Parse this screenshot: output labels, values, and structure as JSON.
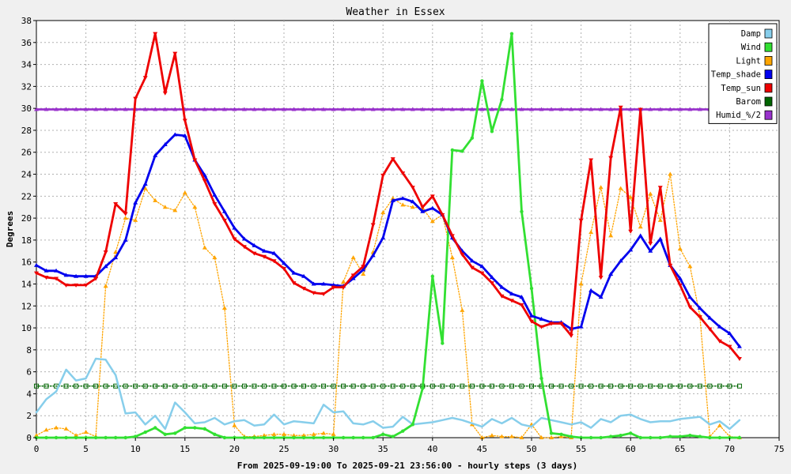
{
  "chart_data": {
    "type": "line",
    "title": "Weather in Essex",
    "xlabel": "From 2025-09-19:00 To 2025-09-21 23:56:00 - hourly steps (3 days)",
    "ylabel": "Degrees",
    "xlim": [
      0,
      75
    ],
    "ylim": [
      0,
      38
    ],
    "xticks": [
      0,
      5,
      10,
      15,
      20,
      25,
      30,
      35,
      40,
      45,
      50,
      55,
      60,
      65,
      70,
      75
    ],
    "yticks": [
      0,
      2,
      4,
      6,
      8,
      10,
      12,
      14,
      16,
      18,
      20,
      22,
      24,
      26,
      28,
      30,
      32,
      34,
      36,
      38
    ],
    "grid": true,
    "legend_position": "top-right",
    "series": [
      {
        "name": "Damp",
        "color": "#87ceeb",
        "style": "solid",
        "marker": "none",
        "values": [
          2.3,
          3.5,
          4.2,
          6.2,
          5.2,
          5.4,
          7.2,
          7.1,
          5.7,
          2.2,
          2.3,
          1.2,
          2.0,
          0.8,
          3.2,
          2.3,
          1.3,
          1.4,
          1.8,
          1.2,
          1.5,
          1.6,
          1.1,
          1.2,
          2.1,
          1.2,
          1.5,
          1.4,
          1.3,
          3.0,
          2.3,
          2.4,
          1.3,
          1.2,
          1.5,
          0.9,
          1.0,
          1.9,
          1.2,
          1.3,
          1.4,
          1.6,
          1.8,
          1.6,
          1.3,
          1.0,
          1.7,
          1.3,
          1.8,
          1.2,
          1.0,
          1.8,
          1.6,
          1.4,
          1.2,
          1.4,
          0.9,
          1.7,
          1.4,
          2.0,
          2.1,
          1.7,
          1.4,
          1.5,
          1.5,
          1.7,
          1.8,
          1.9,
          1.2,
          1.5,
          0.8,
          1.6
        ]
      },
      {
        "name": "Wind",
        "color": "#32e032",
        "style": "solid",
        "marker": "circle",
        "values": [
          0,
          0,
          0,
          0,
          0,
          0,
          0,
          0,
          0,
          0,
          0.1,
          0.5,
          0.9,
          0.3,
          0.4,
          0.9,
          0.9,
          0.8,
          0.3,
          0,
          0,
          0,
          0,
          0,
          0,
          0,
          0,
          0,
          0,
          0,
          0,
          0,
          0,
          0,
          0,
          0.3,
          0.1,
          0.6,
          1.2,
          4.5,
          14.7,
          8.6,
          26.2,
          26.1,
          27.3,
          32.5,
          27.9,
          30.8,
          36.8,
          20.6,
          13.6,
          5.4,
          0.4,
          0.3,
          0.1,
          0,
          0,
          0,
          0.1,
          0.2,
          0.4,
          0,
          0,
          0,
          0.1,
          0.1,
          0.2,
          0.1,
          0,
          0,
          0,
          0
        ]
      },
      {
        "name": "Light",
        "color": "#ffa500",
        "style": "dotted",
        "marker": "triangle-up",
        "values": [
          0.2,
          0.7,
          0.9,
          0.8,
          0.2,
          0.5,
          0.1,
          13.8,
          16.9,
          20.0,
          19.8,
          22.7,
          21.6,
          21.0,
          20.7,
          22.3,
          21.0,
          17.3,
          16.4,
          11.8,
          1.1,
          0.1,
          0.1,
          0.2,
          0.3,
          0.3,
          0.2,
          0.2,
          0.3,
          0.4,
          0.3,
          14.2,
          16.4,
          14.9,
          16.9,
          20.5,
          21.8,
          21.2,
          21.0,
          20.9,
          19.7,
          20.3,
          16.4,
          11.6,
          1.2,
          0,
          0.2,
          0.1,
          0.1,
          0,
          1.2,
          0,
          0,
          0.1,
          0,
          14.0,
          18.7,
          22.8,
          18.4,
          22.7,
          21.9,
          19.2,
          22.2,
          19.8,
          24.0,
          17.2,
          15.6,
          11.1,
          0.1,
          1.1,
          0.1,
          0
        ]
      },
      {
        "name": "Temp_shade",
        "color": "#0000ee",
        "style": "solid",
        "marker": "triangle-up",
        "values": [
          15.7,
          15.2,
          15.2,
          14.8,
          14.7,
          14.7,
          14.7,
          15.6,
          16.4,
          18.0,
          21.4,
          23.1,
          25.7,
          26.7,
          27.6,
          27.5,
          25.3,
          23.9,
          22.1,
          20.6,
          19.1,
          18.1,
          17.5,
          17.0,
          16.8,
          15.9,
          15.0,
          14.7,
          14.0,
          14.0,
          13.9,
          13.8,
          14.5,
          15.3,
          16.6,
          18.2,
          21.6,
          21.8,
          21.5,
          20.6,
          20.9,
          20.3,
          18.2,
          17.0,
          16.1,
          15.6,
          14.6,
          13.7,
          13.1,
          12.8,
          11.1,
          10.8,
          10.5,
          10.5,
          9.9,
          10.1,
          13.4,
          12.8,
          14.9,
          16.1,
          17.1,
          18.4,
          17.0,
          18.1,
          15.7,
          14.5,
          12.8,
          11.8,
          10.9,
          10.1,
          9.5,
          8.3
        ]
      },
      {
        "name": "Temp_sun",
        "color": "#ee0000",
        "style": "solid",
        "marker": "triangle-down",
        "values": [
          15.0,
          14.6,
          14.5,
          13.9,
          13.9,
          13.9,
          14.5,
          16.9,
          21.3,
          20.4,
          30.9,
          32.8,
          36.8,
          31.4,
          35.0,
          28.9,
          25.3,
          23.4,
          21.3,
          19.8,
          18.1,
          17.4,
          16.8,
          16.5,
          16.1,
          15.4,
          14.1,
          13.6,
          13.2,
          13.1,
          13.7,
          13.7,
          14.8,
          15.6,
          19.4,
          23.9,
          25.4,
          24.1,
          22.8,
          21.0,
          22.0,
          20.3,
          18.4,
          16.7,
          15.5,
          15.0,
          14.1,
          12.9,
          12.5,
          12.1,
          10.6,
          10.1,
          10.4,
          10.4,
          9.3,
          19.8,
          25.3,
          14.6,
          25.5,
          30.1,
          18.8,
          29.9,
          17.7,
          22.8,
          15.7,
          13.9,
          11.9,
          11.0,
          9.9,
          8.8,
          8.3,
          7.2
        ]
      },
      {
        "name": "Barom",
        "color": "#006400",
        "style": "dotted",
        "marker": "square-open",
        "values": [
          4.7,
          4.7,
          4.7,
          4.7,
          4.7,
          4.7,
          4.7,
          4.7,
          4.7,
          4.7,
          4.7,
          4.7,
          4.7,
          4.7,
          4.7,
          4.7,
          4.7,
          4.7,
          4.7,
          4.7,
          4.7,
          4.7,
          4.7,
          4.7,
          4.7,
          4.7,
          4.7,
          4.7,
          4.7,
          4.7,
          4.7,
          4.7,
          4.7,
          4.7,
          4.7,
          4.7,
          4.7,
          4.7,
          4.7,
          4.7,
          4.7,
          4.7,
          4.7,
          4.7,
          4.7,
          4.7,
          4.7,
          4.7,
          4.7,
          4.7,
          4.7,
          4.7,
          4.7,
          4.7,
          4.7,
          4.7,
          4.7,
          4.7,
          4.7,
          4.7,
          4.7,
          4.7,
          4.7,
          4.7,
          4.7,
          4.7,
          4.7,
          4.7,
          4.7,
          4.7,
          4.7,
          4.7
        ]
      },
      {
        "name": "Humid_%/2",
        "color": "#9932cc",
        "style": "solid",
        "marker": "triangle-up",
        "values": [
          29.9,
          29.9,
          29.9,
          29.9,
          29.9,
          29.9,
          29.9,
          29.9,
          29.9,
          29.9,
          29.9,
          29.9,
          29.9,
          29.9,
          29.9,
          29.9,
          29.9,
          29.9,
          29.9,
          29.9,
          29.9,
          29.9,
          29.9,
          29.9,
          29.9,
          29.9,
          29.9,
          29.9,
          29.9,
          29.9,
          29.9,
          29.9,
          29.9,
          29.9,
          29.9,
          29.9,
          29.9,
          29.9,
          29.9,
          29.9,
          29.9,
          29.9,
          29.9,
          29.9,
          29.9,
          29.9,
          29.9,
          29.9,
          29.9,
          29.9,
          29.9,
          29.9,
          29.9,
          29.9,
          29.9,
          29.9,
          29.9,
          29.9,
          29.9,
          29.9,
          29.9,
          29.9,
          29.9,
          29.9,
          29.9,
          29.9,
          29.9,
          29.9,
          29.9,
          29.9,
          29.9,
          29.9
        ]
      }
    ]
  }
}
